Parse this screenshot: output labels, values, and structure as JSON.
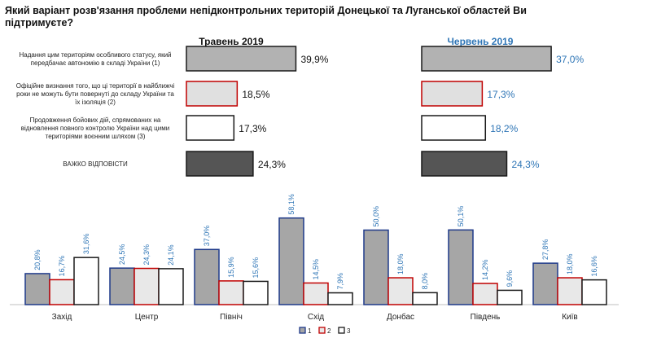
{
  "title": "Який варіант розв'язання проблеми непідконтрольних територій Донецької та Луганської областей Ви підтримуєте?",
  "chart_data": [
    {
      "type": "bar",
      "orientation": "horizontal",
      "answers": [
        "Надання цим територіям особливого статусу, який передбачає автономію в складі України (1)",
        "Офіційне визнання того, що ці території в найближчі роки не можуть бути повернуті до складу України та їх ізоляція (2)",
        "Продовження бойових дій, спрямованих на відновлення повного контролю України над цими територіями воєнним шляхом (3)",
        "ВАЖКО ВІДПОВІСТИ"
      ],
      "series": [
        {
          "name": "Травень 2019",
          "values": [
            39.9,
            18.5,
            17.3,
            24.3
          ],
          "labels": [
            "39,9%",
            "18,5%",
            "17,3%",
            "24,3%"
          ]
        },
        {
          "name": "Червень  2019",
          "values": [
            37.0,
            17.3,
            18.2,
            24.3
          ],
          "labels": [
            "37,0%",
            "17,3%",
            "18,2%",
            "24,3%"
          ]
        }
      ],
      "styles": [
        {
          "fill": "#b2b2b2",
          "stroke": "#1a1a1a"
        },
        {
          "fill": "#e0e0e0",
          "stroke": "#c00000"
        },
        {
          "fill": "#ffffff",
          "stroke": "#1a1a1a"
        },
        {
          "fill": "#555555",
          "stroke": "#1a1a1a"
        }
      ],
      "label_colors": [
        "#111111",
        "#2e75b6"
      ]
    },
    {
      "type": "bar",
      "orientation": "vertical",
      "categories": [
        "Захід",
        "Центр",
        "Північ",
        "Схід",
        "Донбас",
        "Південь",
        "Київ"
      ],
      "series": [
        {
          "name": "1",
          "values": [
            20.8,
            24.5,
            37.0,
            58.1,
            50.0,
            50.1,
            27.8
          ],
          "labels": [
            "20,8%",
            "24,5%",
            "37,0%",
            "58,1%",
            "50,0%",
            "50,1%",
            "27,8%"
          ],
          "fill": "#a6a6a6",
          "stroke": "#1f3a8a"
        },
        {
          "name": "2",
          "values": [
            16.7,
            24.3,
            15.9,
            14.5,
            18.0,
            14.2,
            18.0
          ],
          "labels": [
            "16,7%",
            "24,3%",
            "15,9%",
            "14,5%",
            "18,0%",
            "14,2%",
            "18,0%"
          ],
          "fill": "#e8e8e8",
          "stroke": "#c00000"
        },
        {
          "name": "3",
          "values": [
            31.6,
            24.1,
            15.6,
            7.9,
            8.0,
            9.6,
            16.6
          ],
          "labels": [
            "31,6%",
            "24,1%",
            "15,6%",
            "7,9%",
            "8,0%",
            "9,6%",
            "16,6%"
          ],
          "fill": "#ffffff",
          "stroke": "#1a1a1a"
        }
      ],
      "label_color": "#2e75b6"
    }
  ]
}
